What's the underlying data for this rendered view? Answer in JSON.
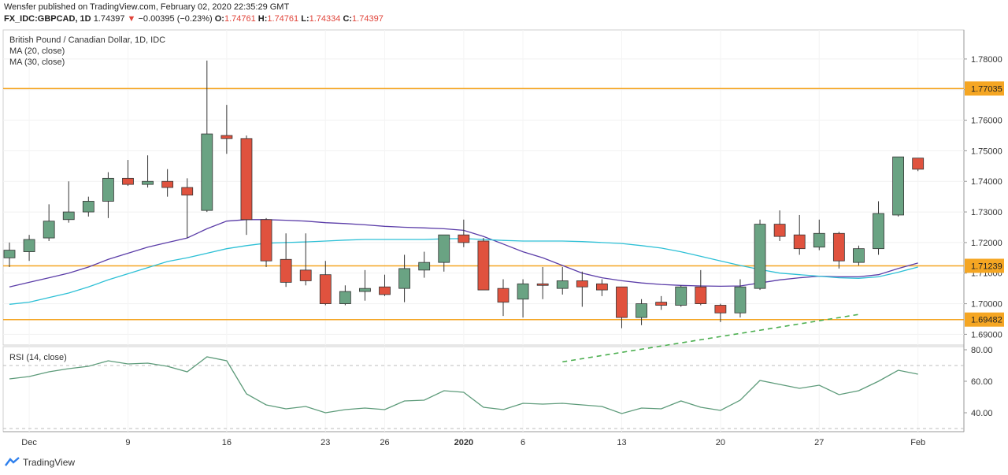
{
  "header": {
    "publisher": "Wensfer published on TradingView.com, February 02, 2020 22:35:29 GMT",
    "symbol": "FX_IDC:GBPCAD, 1D",
    "last": "1.74397",
    "change_arrow": "▼",
    "change": "−0.00395 (−0.23%)",
    "o_label": "O:",
    "o_val": "1.74761",
    "h_label": "H:",
    "h_val": "1.74761",
    "l_label": "L:",
    "l_val": "1.74334",
    "c_label": "C:",
    "c_val": "1.74397"
  },
  "legend": {
    "title": "British Pound / Canadian Dollar, 1D, IDC",
    "ma20": "MA (20, close)",
    "ma30": "MA (30, close)",
    "rsi": "RSI (14, close)"
  },
  "footer": {
    "brand": "TradingView"
  },
  "colors": {
    "up": "#6aa383",
    "down": "#e0523e",
    "ma20": "#5b3da8",
    "ma30": "#2ec0d6",
    "level": "#f5a623",
    "rsi": "#5d9b7a",
    "trend": "#4caf50"
  },
  "chart_data": [
    {
      "type": "candlestick",
      "title": "British Pound / Canadian Dollar, 1D, IDC",
      "x_ticks": [
        "Dec",
        "9",
        "16",
        "23",
        "26",
        "2020",
        "6",
        "13",
        "20",
        "27",
        "Feb"
      ],
      "y_ticks": [
        "1.78000",
        "1.77000",
        "1.76000",
        "1.75000",
        "1.74000",
        "1.73000",
        "1.72000",
        "1.71000",
        "1.70000",
        "1.69000"
      ],
      "ylim": [
        1.6865,
        1.7895
      ],
      "levels": [
        {
          "value": 1.77035,
          "label": "1.77035"
        },
        {
          "value": 1.71239,
          "label": "1.71239"
        },
        {
          "value": 1.69482,
          "label": "1.69482"
        }
      ],
      "candles": [
        {
          "o": 1.715,
          "h": 1.72,
          "l": 1.712,
          "c": 1.7175
        },
        {
          "o": 1.717,
          "h": 1.7225,
          "l": 1.714,
          "c": 1.721
        },
        {
          "o": 1.7215,
          "h": 1.7325,
          "l": 1.7205,
          "c": 1.727
        },
        {
          "o": 1.7275,
          "h": 1.74,
          "l": 1.7265,
          "c": 1.73
        },
        {
          "o": 1.73,
          "h": 1.735,
          "l": 1.7285,
          "c": 1.7335
        },
        {
          "o": 1.7335,
          "h": 1.743,
          "l": 1.728,
          "c": 1.741
        },
        {
          "o": 1.741,
          "h": 1.747,
          "l": 1.7385,
          "c": 1.739
        },
        {
          "o": 1.739,
          "h": 1.7485,
          "l": 1.738,
          "c": 1.74
        },
        {
          "o": 1.74,
          "h": 1.744,
          "l": 1.735,
          "c": 1.738
        },
        {
          "o": 1.738,
          "h": 1.741,
          "l": 1.7215,
          "c": 1.7355
        },
        {
          "o": 1.7305,
          "h": 1.7795,
          "l": 1.73,
          "c": 1.7555
        },
        {
          "o": 1.755,
          "h": 1.765,
          "l": 1.749,
          "c": 1.754
        },
        {
          "o": 1.754,
          "h": 1.755,
          "l": 1.7225,
          "c": 1.7275
        },
        {
          "o": 1.7275,
          "h": 1.728,
          "l": 1.712,
          "c": 1.714
        },
        {
          "o": 1.7145,
          "h": 1.723,
          "l": 1.7055,
          "c": 1.707
        },
        {
          "o": 1.711,
          "h": 1.723,
          "l": 1.706,
          "c": 1.7075
        },
        {
          "o": 1.7095,
          "h": 1.714,
          "l": 1.6995,
          "c": 1.7
        },
        {
          "o": 1.7,
          "h": 1.706,
          "l": 1.6995,
          "c": 1.704
        },
        {
          "o": 1.704,
          "h": 1.711,
          "l": 1.701,
          "c": 1.705
        },
        {
          "o": 1.7055,
          "h": 1.7095,
          "l": 1.7025,
          "c": 1.703
        },
        {
          "o": 1.705,
          "h": 1.716,
          "l": 1.7005,
          "c": 1.7115
        },
        {
          "o": 1.711,
          "h": 1.717,
          "l": 1.7085,
          "c": 1.7135
        },
        {
          "o": 1.7135,
          "h": 1.7225,
          "l": 1.7105,
          "c": 1.7225
        },
        {
          "o": 1.7225,
          "h": 1.7275,
          "l": 1.7185,
          "c": 1.72
        },
        {
          "o": 1.7205,
          "h": 1.7215,
          "l": 1.7045,
          "c": 1.7045
        },
        {
          "o": 1.705,
          "h": 1.708,
          "l": 1.696,
          "c": 1.7005
        },
        {
          "o": 1.7015,
          "h": 1.708,
          "l": 1.6955,
          "c": 1.7065
        },
        {
          "o": 1.7065,
          "h": 1.712,
          "l": 1.7015,
          "c": 1.706
        },
        {
          "o": 1.705,
          "h": 1.712,
          "l": 1.703,
          "c": 1.7075
        },
        {
          "o": 1.7075,
          "h": 1.7105,
          "l": 1.699,
          "c": 1.7055
        },
        {
          "o": 1.7065,
          "h": 1.708,
          "l": 1.7025,
          "c": 1.7045
        },
        {
          "o": 1.7055,
          "h": 1.7055,
          "l": 1.692,
          "c": 1.6955
        },
        {
          "o": 1.6955,
          "h": 1.7015,
          "l": 1.693,
          "c": 1.7
        },
        {
          "o": 1.7005,
          "h": 1.7025,
          "l": 1.698,
          "c": 1.6995
        },
        {
          "o": 1.6995,
          "h": 1.706,
          "l": 1.699,
          "c": 1.7055
        },
        {
          "o": 1.7055,
          "h": 1.711,
          "l": 1.6995,
          "c": 1.7
        },
        {
          "o": 1.6995,
          "h": 1.7,
          "l": 1.694,
          "c": 1.697
        },
        {
          "o": 1.697,
          "h": 1.708,
          "l": 1.6955,
          "c": 1.7055
        },
        {
          "o": 1.705,
          "h": 1.7275,
          "l": 1.7045,
          "c": 1.726
        },
        {
          "o": 1.726,
          "h": 1.7305,
          "l": 1.7205,
          "c": 1.722
        },
        {
          "o": 1.7225,
          "h": 1.729,
          "l": 1.716,
          "c": 1.718
        },
        {
          "o": 1.7185,
          "h": 1.7275,
          "l": 1.7175,
          "c": 1.723
        },
        {
          "o": 1.723,
          "h": 1.7235,
          "l": 1.7115,
          "c": 1.714
        },
        {
          "o": 1.7135,
          "h": 1.719,
          "l": 1.7125,
          "c": 1.718
        },
        {
          "o": 1.718,
          "h": 1.7335,
          "l": 1.716,
          "c": 1.7295
        },
        {
          "o": 1.729,
          "h": 1.748,
          "l": 1.7285,
          "c": 1.748
        },
        {
          "o": 1.74761,
          "h": 1.74761,
          "l": 1.74334,
          "c": 1.74397
        }
      ],
      "series": [
        {
          "name": "MA (20, close)",
          "values": [
            1.7055,
            1.707,
            1.7085,
            1.71,
            1.712,
            1.7145,
            1.7165,
            1.7185,
            1.72,
            1.7215,
            1.7245,
            1.727,
            1.7275,
            1.7275,
            1.7273,
            1.727,
            1.7265,
            1.7262,
            1.7258,
            1.7253,
            1.725,
            1.7248,
            1.7245,
            1.724,
            1.722,
            1.7195,
            1.717,
            1.715,
            1.7125,
            1.71,
            1.7085,
            1.7075,
            1.7068,
            1.7063,
            1.706,
            1.7058,
            1.7057,
            1.7058,
            1.7068,
            1.7078,
            1.7085,
            1.709,
            1.7088,
            1.7088,
            1.7095,
            1.7115,
            1.7133
          ]
        },
        {
          "name": "MA (30, close)",
          "values": [
            1.6998,
            1.7005,
            1.702,
            1.7035,
            1.7055,
            1.7078,
            1.7098,
            1.7118,
            1.7138,
            1.715,
            1.7165,
            1.718,
            1.719,
            1.7198,
            1.72,
            1.7202,
            1.7205,
            1.7208,
            1.721,
            1.721,
            1.721,
            1.721,
            1.7212,
            1.7213,
            1.721,
            1.7207,
            1.7205,
            1.7205,
            1.7205,
            1.7203,
            1.72,
            1.7197,
            1.719,
            1.7182,
            1.717,
            1.7155,
            1.714,
            1.7125,
            1.7112,
            1.71,
            1.7095,
            1.709,
            1.7085,
            1.7083,
            1.7088,
            1.7103,
            1.712
          ]
        }
      ],
      "trendline": {
        "from": {
          "index": 28,
          "value": 1.681
        },
        "to": {
          "index": 43,
          "value": 1.6965
        }
      }
    },
    {
      "type": "line",
      "title": "RSI (14, close)",
      "y_ticks": [
        "80.00",
        "60.00",
        "40.00"
      ],
      "ylim": [
        28,
        82
      ],
      "guides": [
        70,
        30
      ],
      "series": [
        {
          "name": "RSI (14, close)",
          "values": [
            61.5,
            63,
            66,
            68,
            69.5,
            73,
            71,
            71.5,
            69.5,
            66,
            75.5,
            73,
            52,
            45,
            42.5,
            44,
            40,
            42,
            43,
            42,
            47.5,
            48,
            54,
            53,
            43.5,
            42,
            46,
            45.5,
            46,
            45,
            44,
            39.5,
            43,
            42.5,
            47.5,
            43.5,
            41.5,
            48,
            60.5,
            58,
            55.5,
            57.5,
            51.5,
            54,
            60,
            67,
            64.5
          ]
        }
      ]
    }
  ]
}
